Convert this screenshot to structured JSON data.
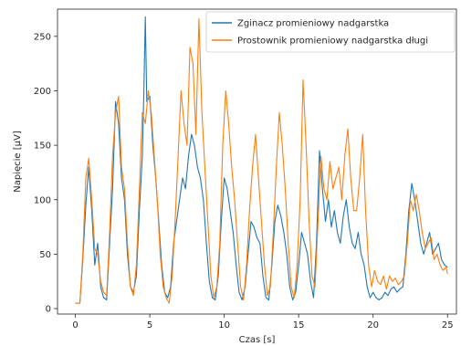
{
  "chart_data": {
    "type": "line",
    "title": "",
    "xlabel": "Czas [s]",
    "ylabel": "Napięcie [μV]",
    "xlim": [
      -1.2,
      25.6
    ],
    "ylim": [
      -5,
      275
    ],
    "xticks": [
      0,
      5,
      10,
      15,
      20,
      25
    ],
    "yticks": [
      0,
      50,
      100,
      150,
      200,
      250
    ],
    "grid": false,
    "legend": "top-right",
    "series": [
      {
        "name": "Zginacz promieniowy nadgarstka",
        "color": "#1f77b4",
        "points": [
          [
            0.0,
            5
          ],
          [
            0.3,
            5
          ],
          [
            0.5,
            45
          ],
          [
            0.7,
            95
          ],
          [
            0.9,
            130
          ],
          [
            1.1,
            90
          ],
          [
            1.3,
            40
          ],
          [
            1.5,
            60
          ],
          [
            1.7,
            20
          ],
          [
            1.9,
            10
          ],
          [
            2.1,
            8
          ],
          [
            2.3,
            60
          ],
          [
            2.5,
            110
          ],
          [
            2.7,
            190
          ],
          [
            2.9,
            170
          ],
          [
            3.1,
            120
          ],
          [
            3.3,
            100
          ],
          [
            3.5,
            50
          ],
          [
            3.7,
            20
          ],
          [
            3.9,
            15
          ],
          [
            4.1,
            30
          ],
          [
            4.3,
            90
          ],
          [
            4.5,
            140
          ],
          [
            4.6,
            200
          ],
          [
            4.7,
            268
          ],
          [
            4.8,
            190
          ],
          [
            5.0,
            195
          ],
          [
            5.2,
            150
          ],
          [
            5.4,
            120
          ],
          [
            5.6,
            80
          ],
          [
            5.8,
            40
          ],
          [
            6.0,
            15
          ],
          [
            6.2,
            10
          ],
          [
            6.4,
            20
          ],
          [
            6.6,
            60
          ],
          [
            6.8,
            80
          ],
          [
            7.0,
            100
          ],
          [
            7.2,
            120
          ],
          [
            7.4,
            110
          ],
          [
            7.6,
            140
          ],
          [
            7.8,
            160
          ],
          [
            8.0,
            150
          ],
          [
            8.2,
            130
          ],
          [
            8.4,
            120
          ],
          [
            8.6,
            100
          ],
          [
            8.8,
            60
          ],
          [
            9.0,
            25
          ],
          [
            9.2,
            10
          ],
          [
            9.4,
            8
          ],
          [
            9.6,
            30
          ],
          [
            9.8,
            80
          ],
          [
            10.0,
            120
          ],
          [
            10.2,
            110
          ],
          [
            10.4,
            90
          ],
          [
            10.6,
            70
          ],
          [
            10.8,
            40
          ],
          [
            11.0,
            15
          ],
          [
            11.2,
            8
          ],
          [
            11.4,
            20
          ],
          [
            11.6,
            50
          ],
          [
            11.8,
            80
          ],
          [
            12.0,
            75
          ],
          [
            12.2,
            65
          ],
          [
            12.4,
            60
          ],
          [
            12.6,
            30
          ],
          [
            12.8,
            10
          ],
          [
            13.0,
            8
          ],
          [
            13.2,
            40
          ],
          [
            13.4,
            80
          ],
          [
            13.6,
            95
          ],
          [
            13.8,
            85
          ],
          [
            14.0,
            70
          ],
          [
            14.2,
            50
          ],
          [
            14.4,
            20
          ],
          [
            14.6,
            8
          ],
          [
            14.8,
            15
          ],
          [
            15.0,
            40
          ],
          [
            15.2,
            70
          ],
          [
            15.4,
            60
          ],
          [
            15.6,
            50
          ],
          [
            15.8,
            25
          ],
          [
            16.0,
            10
          ],
          [
            16.2,
            60
          ],
          [
            16.4,
            145
          ],
          [
            16.6,
            110
          ],
          [
            16.8,
            80
          ],
          [
            17.0,
            100
          ],
          [
            17.2,
            75
          ],
          [
            17.4,
            90
          ],
          [
            17.6,
            70
          ],
          [
            17.8,
            60
          ],
          [
            18.0,
            85
          ],
          [
            18.2,
            100
          ],
          [
            18.4,
            75
          ],
          [
            18.6,
            60
          ],
          [
            18.8,
            55
          ],
          [
            19.0,
            70
          ],
          [
            19.2,
            50
          ],
          [
            19.4,
            40
          ],
          [
            19.6,
            20
          ],
          [
            19.8,
            10
          ],
          [
            20.0,
            15
          ],
          [
            20.2,
            10
          ],
          [
            20.4,
            8
          ],
          [
            20.6,
            10
          ],
          [
            20.8,
            15
          ],
          [
            21.0,
            12
          ],
          [
            21.2,
            18
          ],
          [
            21.4,
            20
          ],
          [
            21.6,
            15
          ],
          [
            21.8,
            18
          ],
          [
            22.0,
            20
          ],
          [
            22.2,
            50
          ],
          [
            22.4,
            90
          ],
          [
            22.6,
            115
          ],
          [
            22.8,
            100
          ],
          [
            23.0,
            80
          ],
          [
            23.2,
            60
          ],
          [
            23.4,
            50
          ],
          [
            23.6,
            60
          ],
          [
            23.8,
            70
          ],
          [
            24.0,
            50
          ],
          [
            24.2,
            55
          ],
          [
            24.4,
            60
          ],
          [
            24.6,
            45
          ],
          [
            24.8,
            40
          ],
          [
            25.0,
            38
          ]
        ]
      },
      {
        "name": "Prostownik promieniowy nadgarstka długi",
        "color": "#ff7f0e",
        "points": [
          [
            0.0,
            5
          ],
          [
            0.3,
            5
          ],
          [
            0.5,
            50
          ],
          [
            0.7,
            120
          ],
          [
            0.9,
            138
          ],
          [
            1.1,
            100
          ],
          [
            1.3,
            55
          ],
          [
            1.5,
            50
          ],
          [
            1.7,
            25
          ],
          [
            1.9,
            15
          ],
          [
            2.1,
            12
          ],
          [
            2.3,
            70
          ],
          [
            2.5,
            140
          ],
          [
            2.7,
            180
          ],
          [
            2.9,
            195
          ],
          [
            3.1,
            130
          ],
          [
            3.3,
            110
          ],
          [
            3.5,
            60
          ],
          [
            3.7,
            20
          ],
          [
            3.9,
            12
          ],
          [
            4.1,
            40
          ],
          [
            4.3,
            110
          ],
          [
            4.5,
            180
          ],
          [
            4.7,
            170
          ],
          [
            4.9,
            200
          ],
          [
            5.1,
            180
          ],
          [
            5.3,
            140
          ],
          [
            5.5,
            100
          ],
          [
            5.7,
            50
          ],
          [
            5.9,
            20
          ],
          [
            6.1,
            10
          ],
          [
            6.3,
            5
          ],
          [
            6.5,
            30
          ],
          [
            6.7,
            80
          ],
          [
            6.9,
            140
          ],
          [
            7.1,
            200
          ],
          [
            7.3,
            170
          ],
          [
            7.5,
            150
          ],
          [
            7.7,
            240
          ],
          [
            7.9,
            225
          ],
          [
            8.1,
            160
          ],
          [
            8.3,
            266
          ],
          [
            8.5,
            180
          ],
          [
            8.7,
            130
          ],
          [
            8.9,
            80
          ],
          [
            9.1,
            30
          ],
          [
            9.3,
            10
          ],
          [
            9.5,
            20
          ],
          [
            9.7,
            60
          ],
          [
            9.9,
            150
          ],
          [
            10.1,
            200
          ],
          [
            10.3,
            170
          ],
          [
            10.5,
            130
          ],
          [
            10.7,
            100
          ],
          [
            10.9,
            60
          ],
          [
            11.1,
            20
          ],
          [
            11.3,
            8
          ],
          [
            11.5,
            40
          ],
          [
            11.7,
            90
          ],
          [
            11.9,
            130
          ],
          [
            12.1,
            160
          ],
          [
            12.3,
            120
          ],
          [
            12.5,
            80
          ],
          [
            12.7,
            40
          ],
          [
            12.9,
            12
          ],
          [
            13.1,
            20
          ],
          [
            13.3,
            70
          ],
          [
            13.5,
            130
          ],
          [
            13.7,
            180
          ],
          [
            13.9,
            150
          ],
          [
            14.1,
            110
          ],
          [
            14.3,
            60
          ],
          [
            14.5,
            20
          ],
          [
            14.7,
            10
          ],
          [
            14.9,
            40
          ],
          [
            15.1,
            100
          ],
          [
            15.3,
            210
          ],
          [
            15.5,
            150
          ],
          [
            15.7,
            80
          ],
          [
            15.9,
            30
          ],
          [
            16.1,
            20
          ],
          [
            16.3,
            80
          ],
          [
            16.5,
            140
          ],
          [
            16.7,
            110
          ],
          [
            16.9,
            100
          ],
          [
            17.1,
            135
          ],
          [
            17.3,
            110
          ],
          [
            17.5,
            120
          ],
          [
            17.7,
            130
          ],
          [
            17.9,
            100
          ],
          [
            18.1,
            140
          ],
          [
            18.3,
            165
          ],
          [
            18.5,
            120
          ],
          [
            18.7,
            90
          ],
          [
            18.9,
            90
          ],
          [
            19.1,
            120
          ],
          [
            19.3,
            160
          ],
          [
            19.5,
            90
          ],
          [
            19.7,
            40
          ],
          [
            19.9,
            20
          ],
          [
            20.1,
            35
          ],
          [
            20.3,
            25
          ],
          [
            20.5,
            22
          ],
          [
            20.7,
            30
          ],
          [
            20.9,
            18
          ],
          [
            21.1,
            30
          ],
          [
            21.3,
            25
          ],
          [
            21.5,
            28
          ],
          [
            21.7,
            22
          ],
          [
            21.9,
            25
          ],
          [
            22.1,
            30
          ],
          [
            22.3,
            60
          ],
          [
            22.5,
            100
          ],
          [
            22.7,
            90
          ],
          [
            22.9,
            105
          ],
          [
            23.1,
            90
          ],
          [
            23.3,
            70
          ],
          [
            23.5,
            55
          ],
          [
            23.7,
            60
          ],
          [
            23.9,
            65
          ],
          [
            24.1,
            45
          ],
          [
            24.3,
            50
          ],
          [
            24.5,
            40
          ],
          [
            24.7,
            35
          ],
          [
            24.9,
            38
          ],
          [
            25.0,
            32
          ]
        ]
      }
    ]
  }
}
